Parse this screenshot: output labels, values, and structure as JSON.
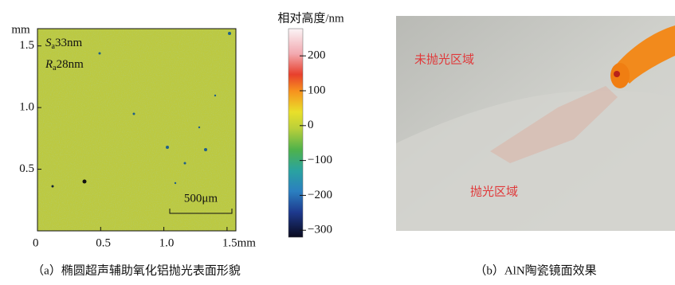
{
  "panel_a": {
    "caption": "（a）椭圆超声辅助氧化铝抛光表面形貌",
    "x_axis": {
      "xlim": [
        0,
        1.57
      ],
      "xticks": [
        0,
        0.5,
        {
          "value": 1,
          "label": "1.0"
        },
        {
          "value": 1.5,
          "label": "1.5mm"
        }
      ]
    },
    "y_axis": {
      "unit": "mm",
      "ylim": [
        0,
        1.64
      ],
      "yticks": [
        0.5,
        {
          "value": 1,
          "label": "1.0"
        },
        1.5
      ]
    },
    "annotations": {
      "sa": {
        "symbol": "S",
        "sub": "a",
        "text": "33nm"
      },
      "ra": {
        "symbol": "R",
        "sub": "a",
        "text": "28nm"
      }
    },
    "scale_bar": "500μm",
    "colorbar": {
      "title": "相对高度/nm",
      "lim": [
        -320,
        278
      ],
      "ticks": [
        {
          "value": 200,
          "label": "200"
        },
        {
          "value": 100,
          "label": "100"
        },
        0,
        {
          "value": -100,
          "label": "−100"
        },
        {
          "value": -200,
          "label": "−200"
        },
        {
          "value": -300,
          "label": "−300"
        }
      ]
    }
  },
  "panel_b": {
    "caption": "（b）AlN陶瓷镜面效果",
    "label_unpolished": "未抛光区域",
    "label_polished": "抛光区域"
  }
}
